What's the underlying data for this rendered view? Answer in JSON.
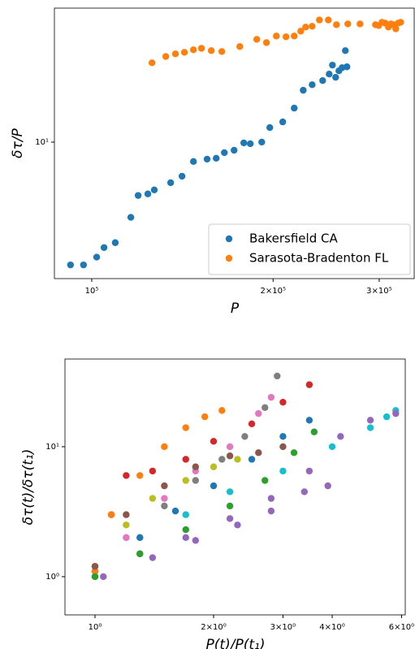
{
  "chart_data": [
    {
      "type": "scatter",
      "xlabel": "P",
      "ylabel": "δτ/P",
      "xlog": true,
      "ylog": true,
      "xlim": [
        86700,
        344000
      ],
      "ylim": [
        4.3,
        22.9
      ],
      "xticks": [
        {
          "value": 100000,
          "label": "10⁵"
        },
        {
          "value": 200000,
          "label": "2×10⁵"
        },
        {
          "value": 300000,
          "label": "3×10⁵"
        }
      ],
      "yticks": [
        {
          "value": 10,
          "label": "10¹"
        }
      ],
      "legend": "lower right",
      "series": [
        {
          "name": "Bakersfield CA",
          "color": "#1f77b4",
          "x": [
            92200,
            96900,
            101900,
            104800,
            109400,
            116100,
            119400,
            123900,
            127000,
            135200,
            141200,
            147500,
            155400,
            160900,
            166000,
            172300,
            178800,
            183300,
            191500,
            197500,
            207500,
            216800,
            224400,
            232200,
            241700,
            247800,
            250900,
            254000,
            257200,
            260400,
            263600,
            265200
          ],
          "values": [
            4.68,
            4.68,
            4.91,
            5.21,
            5.37,
            6.28,
            7.19,
            7.26,
            7.44,
            7.78,
            8.1,
            8.87,
            9.0,
            9.05,
            9.37,
            9.51,
            9.95,
            9.9,
            10.0,
            10.94,
            11.33,
            12.34,
            13.78,
            14.26,
            14.63,
            15.23,
            16.1,
            14.93,
            15.54,
            15.85,
            17.61,
            15.93
          ]
        },
        {
          "name": "Sarasota-Bradenton FL",
          "color": "#ff7f0e",
          "x": [
            125900,
            132700,
            137700,
            142500,
            147500,
            152100,
            157900,
            164400,
            176100,
            187900,
            195000,
            202500,
            210100,
            216800,
            222300,
            226500,
            232200,
            238700,
            247000,
            254800,
            266100,
            278800,
            295800,
            299500,
            303200,
            307000,
            310800,
            313700,
            316600,
            319600,
            322600,
            325700
          ],
          "values": [
            16.33,
            16.98,
            17.26,
            17.42,
            17.7,
            17.86,
            17.61,
            17.51,
            18.06,
            18.88,
            18.5,
            19.27,
            19.18,
            19.27,
            19.86,
            20.37,
            20.47,
            21.28,
            21.28,
            20.67,
            20.77,
            20.77,
            20.67,
            20.56,
            20.98,
            20.87,
            20.37,
            20.77,
            20.67,
            20.14,
            20.87,
            20.98
          ]
        }
      ]
    },
    {
      "type": "scatter",
      "xlabel": "P(t)/P(t₁)",
      "ylabel": "δτ(t)/δτ(t₁)",
      "xlog": true,
      "ylog": true,
      "xlim": [
        0.839,
        6.16
      ],
      "ylim": [
        0.508,
        47.3
      ],
      "xticks": [
        {
          "value": 1,
          "label": "10⁰"
        },
        {
          "value": 2,
          "label": "2×10⁰"
        },
        {
          "value": 3,
          "label": "3×10⁰"
        },
        {
          "value": 4,
          "label": "4×10⁰"
        },
        {
          "value": 6,
          "label": "6×10⁰"
        }
      ],
      "yticks": [
        {
          "value": 1,
          "label": "10⁰"
        },
        {
          "value": 10,
          "label": "10¹"
        }
      ],
      "series": [
        {
          "color": "#7f7f7f",
          "x": [
            1.0,
            1.2,
            1.5,
            1.8,
            2.1,
            2.4,
            2.7,
            2.9
          ],
          "values": [
            1.1,
            2.0,
            3.5,
            5.5,
            8,
            12,
            20,
            35
          ]
        },
        {
          "color": "#d62728",
          "x": [
            1.0,
            1.1,
            1.2,
            1.4,
            1.7,
            2.0,
            2.5,
            3.0,
            3.5
          ],
          "values": [
            1.2,
            3,
            6,
            6.5,
            8,
            11,
            15,
            22,
            30
          ]
        },
        {
          "color": "#17becf",
          "x": [
            1,
            1.3,
            1.7,
            2.2,
            3,
            4,
            5,
            5.5,
            5.8
          ],
          "values": [
            1.1,
            2,
            3,
            4.5,
            6.5,
            10,
            14,
            17,
            19
          ]
        },
        {
          "color": "#9467bd",
          "x": [
            1,
            1.3,
            1.7,
            2.2,
            2.8,
            3.5,
            4.2,
            5,
            5.8
          ],
          "values": [
            1.0,
            1.5,
            2,
            2.8,
            4,
            6.5,
            12,
            16,
            18
          ]
        },
        {
          "color": "#9467bd",
          "x": [
            1.05,
            1.4,
            1.8,
            2.3,
            2.8,
            3.4,
            3.9
          ],
          "values": [
            1.0,
            1.4,
            1.9,
            2.5,
            3.2,
            4.5,
            5
          ]
        },
        {
          "color": "#1f77b4",
          "x": [
            1,
            1.3,
            1.6,
            2,
            2.5,
            3,
            3.5
          ],
          "values": [
            1.1,
            2,
            3.2,
            5,
            8,
            12,
            16
          ]
        },
        {
          "color": "#ff7f0e",
          "x": [
            1,
            1.1,
            1.3,
            1.5,
            1.7,
            1.9,
            2.1
          ],
          "values": [
            1.1,
            3,
            6,
            10,
            14,
            17,
            19
          ]
        },
        {
          "color": "#e377c2",
          "x": [
            1.0,
            1.2,
            1.5,
            1.8,
            2.2,
            2.6,
            2.8
          ],
          "values": [
            1.0,
            2,
            4,
            6.5,
            10,
            18,
            24
          ]
        },
        {
          "color": "#2ca02c",
          "x": [
            1,
            1.3,
            1.7,
            2.2,
            2.7,
            3.2,
            3.6
          ],
          "values": [
            1.0,
            1.5,
            2.3,
            3.5,
            5.5,
            9,
            13
          ]
        },
        {
          "color": "#bcbd22",
          "x": [
            1,
            1.2,
            1.4,
            1.7,
            2.0,
            2.3
          ],
          "values": [
            1.2,
            2.5,
            4,
            5.5,
            7,
            8
          ]
        },
        {
          "color": "#8c564b",
          "x": [
            1,
            1.2,
            1.5,
            1.8,
            2.2,
            2.6,
            3
          ],
          "values": [
            1.2,
            3,
            5,
            7,
            8.5,
            9,
            10
          ]
        }
      ]
    }
  ]
}
